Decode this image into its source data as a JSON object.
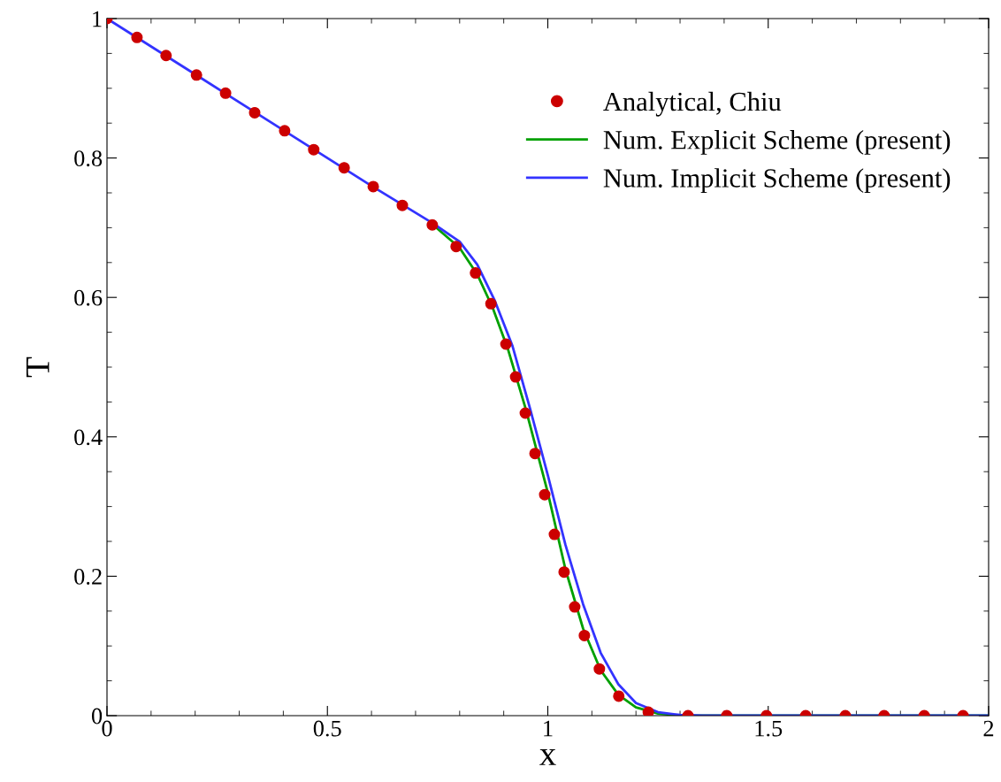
{
  "chart_data": {
    "type": "line",
    "xlabel": "x",
    "ylabel": "T",
    "xlim": [
      0,
      2
    ],
    "xticks": [
      0,
      0.5,
      1,
      1.5,
      2
    ],
    "ylim": [
      0,
      1
    ],
    "yticks": [
      0,
      0.2,
      0.4,
      0.6,
      0.8,
      1
    ],
    "grid": false,
    "legend": "top right",
    "series": [
      {
        "name": "Analytical, Chiu",
        "type": "scatter",
        "marker": "circle",
        "color": "#cc0000",
        "x": [
          0,
          0.068,
          0.134,
          0.203,
          0.269,
          0.335,
          0.403,
          0.469,
          0.538,
          0.604,
          0.67,
          0.738,
          0.792,
          0.836,
          0.871,
          0.905,
          0.927,
          0.949,
          0.971,
          0.993,
          1.015,
          1.037,
          1.061,
          1.083,
          1.117,
          1.161,
          1.228,
          1.318,
          1.406,
          1.496,
          1.585,
          1.675,
          1.763,
          1.854,
          1.942
        ],
        "values": [
          1,
          0.973,
          0.947,
          0.919,
          0.893,
          0.865,
          0.839,
          0.812,
          0.786,
          0.759,
          0.732,
          0.704,
          0.673,
          0.635,
          0.591,
          0.533,
          0.486,
          0.434,
          0.376,
          0.317,
          0.26,
          0.206,
          0.156,
          0.115,
          0.067,
          0.028,
          0.005,
          0,
          0,
          0,
          0,
          0,
          0,
          0,
          0
        ]
      },
      {
        "name": "Num. Explicit Scheme (present)",
        "color": "#00a000",
        "x": [
          0.74,
          0.8,
          0.84,
          0.875,
          0.91,
          0.95,
          1.0,
          1.04,
          1.08,
          1.12,
          1.16,
          1.2,
          1.25,
          1.3,
          2
        ],
        "values": [
          0.704,
          0.671,
          0.633,
          0.585,
          0.525,
          0.44,
          0.32,
          0.21,
          0.125,
          0.065,
          0.03,
          0.012,
          0.003,
          0,
          0
        ]
      },
      {
        "name": "Num. Implicit Scheme (present)",
        "color": "#3333ff",
        "x": [
          0,
          0.2,
          0.4,
          0.6,
          0.74,
          0.8,
          0.84,
          0.88,
          0.92,
          0.96,
          1.0,
          1.04,
          1.08,
          1.12,
          1.16,
          1.2,
          1.25,
          1.3,
          1.35,
          2
        ],
        "values": [
          1,
          0.92,
          0.84,
          0.76,
          0.706,
          0.68,
          0.647,
          0.595,
          0.53,
          0.44,
          0.345,
          0.245,
          0.16,
          0.09,
          0.045,
          0.018,
          0.005,
          0.001,
          0,
          0
        ]
      }
    ]
  }
}
